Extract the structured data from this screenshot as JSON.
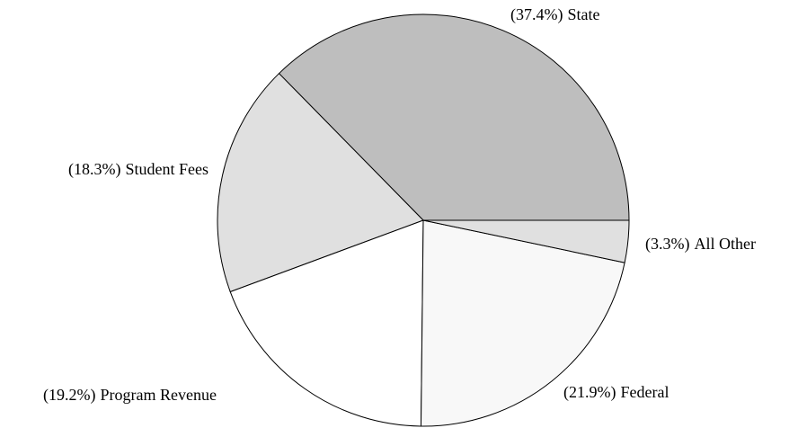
{
  "chart_data": {
    "type": "pie",
    "categories": [
      "State",
      "Student Fees",
      "Program Revenue",
      "Federal",
      "All Other"
    ],
    "values": [
      37.4,
      18.3,
      19.2,
      21.9,
      3.3
    ],
    "value_labels": [
      "(37.4%)",
      "(18.3%)",
      "(19.2%)",
      "(21.9%)",
      "(3.3%)"
    ],
    "colors": [
      "#bebebe",
      "#e0e0e0",
      "#ffffff",
      "#f8f8f8",
      "#e0e0e0"
    ]
  }
}
